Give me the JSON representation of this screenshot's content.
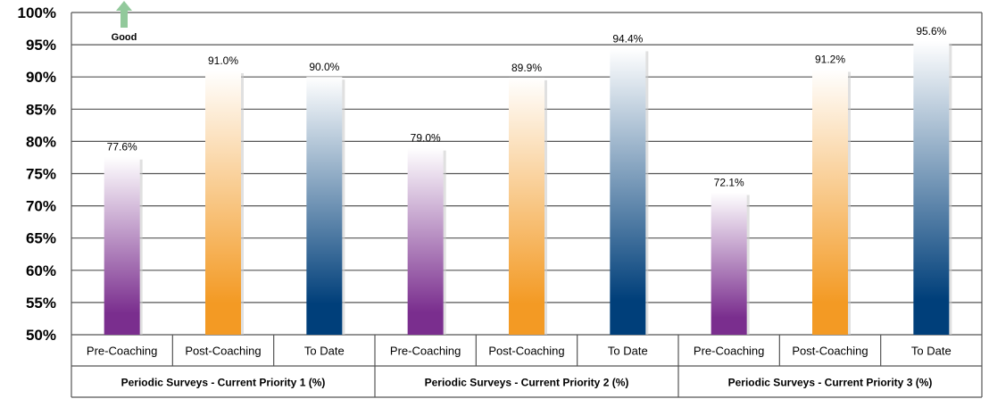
{
  "chart_data": {
    "type": "bar",
    "ylim": [
      50,
      100
    ],
    "ytick_step": 5,
    "yticks": [
      "50%",
      "55%",
      "60%",
      "65%",
      "70%",
      "75%",
      "80%",
      "85%",
      "90%",
      "95%",
      "100%"
    ],
    "grid": true,
    "annotation": {
      "text": "Good",
      "arrow": "up",
      "color": "#92c99b"
    },
    "categories": [
      "Pre-Coaching",
      "Post-Coaching",
      "To Date"
    ],
    "category_colors": {
      "Pre-Coaching": [
        "#7a2e8e",
        "#ffffff"
      ],
      "Post-Coaching": [
        "#f39a24",
        "#ffffff"
      ],
      "To Date": [
        "#003f7a",
        "#ffffff"
      ]
    },
    "groups": [
      {
        "name": "Periodic Surveys - Current Priority 1 (%)",
        "values": [
          77.6,
          91.0,
          90.0
        ],
        "labels": [
          "77.6%",
          "91.0%",
          "90.0%"
        ]
      },
      {
        "name": "Periodic Surveys - Current Priority 2 (%)",
        "values": [
          79.0,
          89.9,
          94.4
        ],
        "labels": [
          "79.0%",
          "89.9%",
          "94.4%"
        ]
      },
      {
        "name": "Periodic Surveys - Current Priority 3 (%)",
        "values": [
          72.1,
          91.2,
          95.6
        ],
        "labels": [
          "72.1%",
          "91.2%",
          "95.6%"
        ]
      }
    ]
  }
}
